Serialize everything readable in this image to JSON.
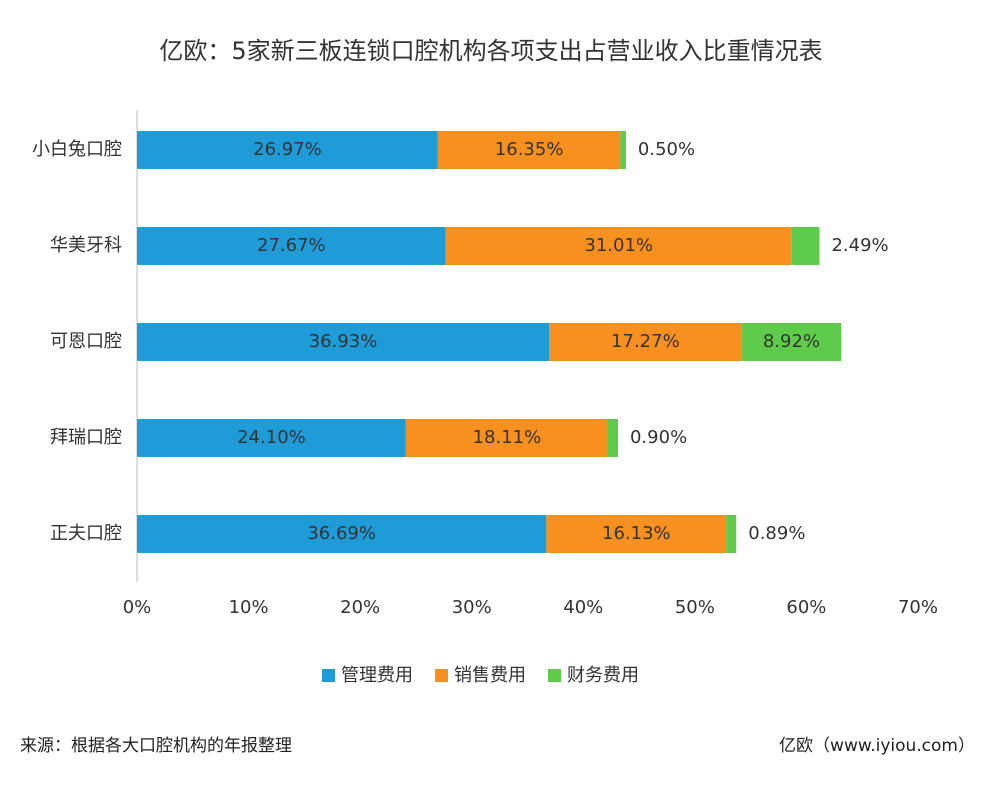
{
  "chart_data": {
    "type": "stacked-bar-horizontal",
    "title": "亿欧：5家新三板连锁口腔机构各项支出占营业收入比重情况表",
    "categories": [
      "小白兔口腔",
      "华美牙科",
      "可恩口腔",
      "拜瑞口腔",
      "正夫口腔"
    ],
    "series": [
      {
        "name": "管理费用",
        "color": "#1f9bd7",
        "values": [
          26.97,
          27.67,
          36.93,
          24.1,
          36.69
        ],
        "value_labels": [
          "26.97%",
          "27.67%",
          "36.93%",
          "24.10%",
          "36.69%"
        ]
      },
      {
        "name": "销售费用",
        "color": "#f7901e",
        "values": [
          16.35,
          31.01,
          17.27,
          18.11,
          16.13
        ],
        "value_labels": [
          "16.35%",
          "31.01%",
          "17.27%",
          "18.11%",
          "16.13%"
        ]
      },
      {
        "name": "财务费用",
        "color": "#5ecc4a",
        "values": [
          0.5,
          2.49,
          8.92,
          0.9,
          0.89
        ],
        "value_labels": [
          "0.50%",
          "2.49%",
          "8.92%",
          "0.90%",
          "0.89%"
        ]
      }
    ],
    "xlim": [
      0,
      70
    ],
    "xticks": [
      {
        "value": 0,
        "label": "0%"
      },
      {
        "value": 10,
        "label": "10%"
      },
      {
        "value": 20,
        "label": "20%"
      },
      {
        "value": 30,
        "label": "30%"
      },
      {
        "value": 40,
        "label": "40%"
      },
      {
        "value": 50,
        "label": "50%"
      },
      {
        "value": 60,
        "label": "60%"
      },
      {
        "value": 70,
        "label": "70%"
      }
    ],
    "legend": "bottom",
    "source": "来源：根据各大口腔机构的年报整理",
    "credit": "亿欧（www.iyiou.com）"
  }
}
